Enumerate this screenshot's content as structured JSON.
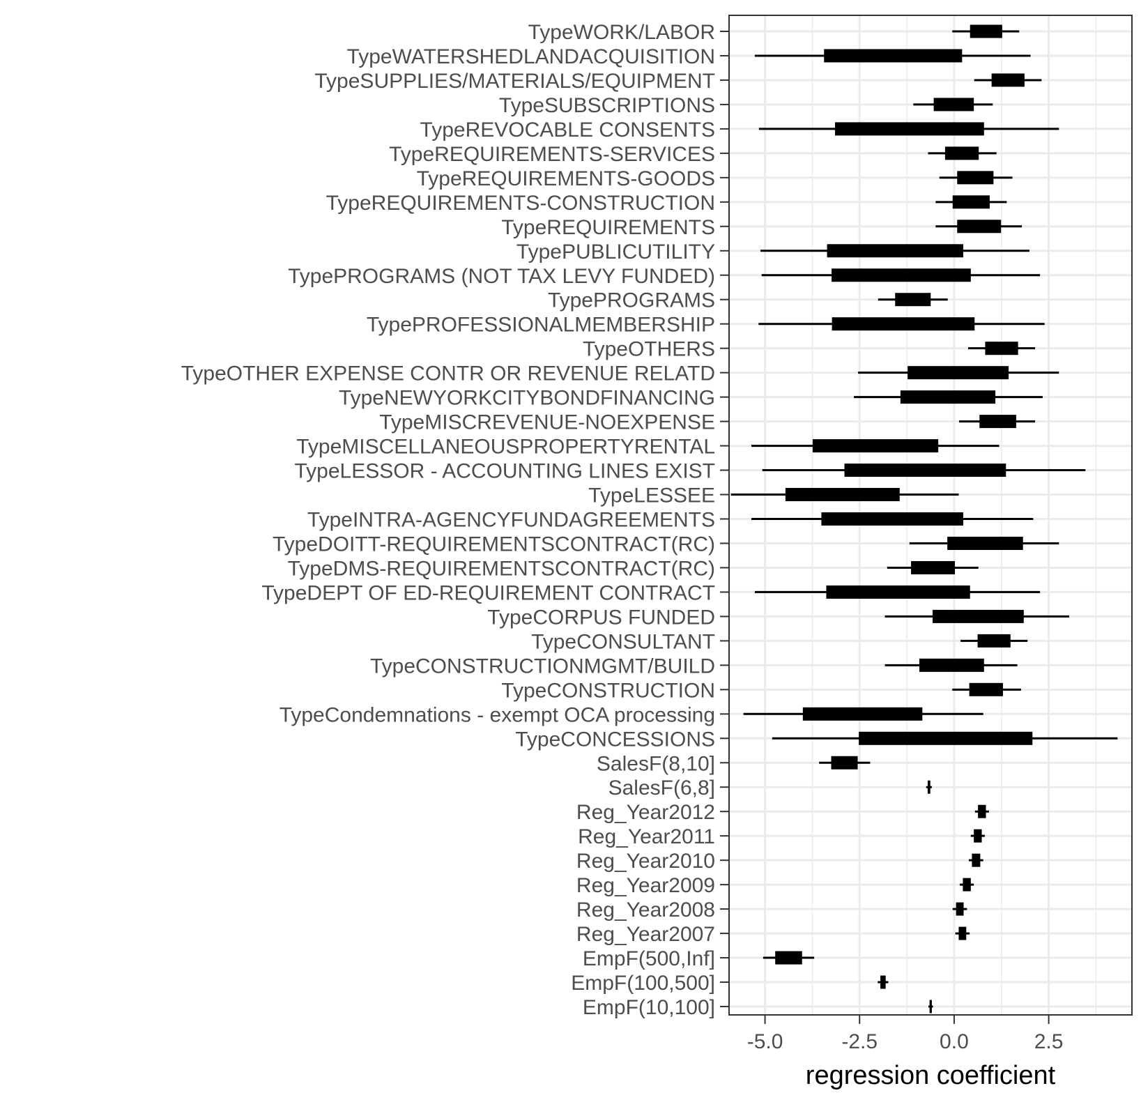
{
  "chart_data": {
    "type": "interval",
    "xlabel": "regression coefficient",
    "ylabel": "",
    "xlim": [
      -5.95,
      4.7
    ],
    "x_ticks": [
      -5.0,
      -2.5,
      0.0,
      2.5
    ],
    "x_tick_labels": [
      "-5.0",
      "-2.5",
      "0.0",
      "2.5"
    ],
    "x_minor_ticks": [
      -6.25,
      -3.75,
      -1.25,
      1.25,
      3.75
    ],
    "grid": true,
    "legend": "none",
    "colors": {
      "mark": "#000000",
      "grid": "#ebebeb",
      "panel_border": "#333333",
      "tick_label": "#4d4d4d"
    },
    "terms": [
      {
        "label": "TypeWORK/LABOR",
        "outer": [
          -0.05,
          1.72
        ],
        "inner": [
          0.42,
          1.27
        ]
      },
      {
        "label": "TypeWATERSHEDLANDACQUISITION",
        "outer": [
          -5.27,
          2.02
        ],
        "inner": [
          -3.44,
          0.21
        ]
      },
      {
        "label": "TypeSUPPLIES/MATERIALS/EQUIPMENT",
        "outer": [
          0.53,
          2.31
        ],
        "inner": [
          0.99,
          1.86
        ]
      },
      {
        "label": "TypeSUBSCRIPTIONS",
        "outer": [
          -1.08,
          1.02
        ],
        "inner": [
          -0.54,
          0.52
        ]
      },
      {
        "label": "TypeREVOCABLE CONSENTS",
        "outer": [
          -5.16,
          2.77
        ],
        "inner": [
          -3.15,
          0.79
        ]
      },
      {
        "label": "TypeREQUIREMENTS-SERVICES",
        "outer": [
          -0.69,
          1.12
        ],
        "inner": [
          -0.24,
          0.65
        ]
      },
      {
        "label": "TypeREQUIREMENTS-GOODS",
        "outer": [
          -0.39,
          1.54
        ],
        "inner": [
          0.08,
          1.04
        ]
      },
      {
        "label": "TypeREQUIREMENTS-CONSTRUCTION",
        "outer": [
          -0.49,
          1.39
        ],
        "inner": [
          -0.04,
          0.94
        ]
      },
      {
        "label": "TypeREQUIREMENTS",
        "outer": [
          -0.49,
          1.79
        ],
        "inner": [
          0.08,
          1.24
        ]
      },
      {
        "label": "TypePUBLICUTILITY",
        "outer": [
          -5.12,
          1.99
        ],
        "inner": [
          -3.36,
          0.24
        ]
      },
      {
        "label": "TypePROGRAMS (NOT TAX LEVY FUNDED)",
        "outer": [
          -5.09,
          2.27
        ],
        "inner": [
          -3.24,
          0.44
        ]
      },
      {
        "label": "TypePROGRAMS",
        "outer": [
          -2.01,
          -0.17
        ],
        "inner": [
          -1.56,
          -0.62
        ]
      },
      {
        "label": "TypePROFESSIONALMEMBERSHIP",
        "outer": [
          -5.17,
          2.39
        ],
        "inner": [
          -3.23,
          0.54
        ]
      },
      {
        "label": "TypeOTHERS",
        "outer": [
          0.37,
          2.14
        ],
        "inner": [
          0.82,
          1.69
        ]
      },
      {
        "label": "TypeOTHER EXPENSE CONTR OR REVENUE RELATD",
        "outer": [
          -2.54,
          2.77
        ],
        "inner": [
          -1.23,
          1.44
        ]
      },
      {
        "label": "TypeNEWYORKCITYBONDFINANCING",
        "outer": [
          -2.65,
          2.34
        ],
        "inner": [
          -1.42,
          1.09
        ]
      },
      {
        "label": "TypeMISCREVENUE-NOEXPENSE",
        "outer": [
          0.13,
          2.14
        ],
        "inner": [
          0.67,
          1.64
        ]
      },
      {
        "label": "TypeMISCELLANEOUSPROPERTYRENTAL",
        "outer": [
          -5.36,
          1.19
        ],
        "inner": [
          -3.74,
          -0.42
        ]
      },
      {
        "label": "TypeLESSOR - ACCOUNTING LINES EXIST",
        "outer": [
          -5.07,
          3.47
        ],
        "inner": [
          -2.9,
          1.37
        ]
      },
      {
        "label": "TypeLESSEE",
        "outer": [
          -5.9,
          0.12
        ],
        "inner": [
          -4.46,
          -1.44
        ]
      },
      {
        "label": "TypeINTRA-AGENCYFUNDAGREEMENTS",
        "outer": [
          -5.36,
          2.09
        ],
        "inner": [
          -3.51,
          0.24
        ]
      },
      {
        "label": "TypeDOITT-REQUIREMENTSCONTRACT(RC)",
        "outer": [
          -1.18,
          2.77
        ],
        "inner": [
          -0.18,
          1.82
        ]
      },
      {
        "label": "TypeDMS-REQUIREMENTSCONTRACT(RC)",
        "outer": [
          -1.77,
          0.64
        ],
        "inner": [
          -1.14,
          0.02
        ]
      },
      {
        "label": "TypeDEPT OF ED-REQUIREMENT CONTRACT",
        "outer": [
          -5.27,
          2.27
        ],
        "inner": [
          -3.38,
          0.42
        ]
      },
      {
        "label": "TypeCORPUS FUNDED",
        "outer": [
          -1.83,
          3.04
        ],
        "inner": [
          -0.57,
          1.84
        ]
      },
      {
        "label": "TypeCONSULTANT",
        "outer": [
          0.17,
          1.94
        ],
        "inner": [
          0.62,
          1.49
        ]
      },
      {
        "label": "TypeCONSTRUCTIONMGMT/BUILD",
        "outer": [
          -1.83,
          1.67
        ],
        "inner": [
          -0.92,
          0.79
        ]
      },
      {
        "label": "TypeCONSTRUCTION",
        "outer": [
          -0.05,
          1.77
        ],
        "inner": [
          0.4,
          1.29
        ]
      },
      {
        "label": "TypeCondemnations - exempt OCA processing",
        "outer": [
          -5.57,
          0.77
        ],
        "inner": [
          -4.0,
          -0.84
        ]
      },
      {
        "label": "TypeCONCESSIONS",
        "outer": [
          -4.81,
          4.32
        ],
        "inner": [
          -2.52,
          2.07
        ]
      },
      {
        "label": "SalesF(8,10]",
        "outer": [
          -3.57,
          -2.22
        ],
        "inner": [
          -3.25,
          -2.55
        ]
      },
      {
        "label": "SalesF(6,8]",
        "outer": [
          -0.74,
          -0.59
        ],
        "inner": [
          -0.7,
          -0.63
        ]
      },
      {
        "label": "Reg_Year2012",
        "outer": [
          0.55,
          0.92
        ],
        "inner": [
          0.63,
          0.84
        ]
      },
      {
        "label": "Reg_Year2011",
        "outer": [
          0.44,
          0.81
        ],
        "inner": [
          0.52,
          0.73
        ]
      },
      {
        "label": "Reg_Year2010",
        "outer": [
          0.39,
          0.77
        ],
        "inner": [
          0.47,
          0.69
        ]
      },
      {
        "label": "Reg_Year2009",
        "outer": [
          0.15,
          0.52
        ],
        "inner": [
          0.23,
          0.44
        ]
      },
      {
        "label": "Reg_Year2008",
        "outer": [
          -0.04,
          0.34
        ],
        "inner": [
          0.05,
          0.25
        ]
      },
      {
        "label": "Reg_Year2007",
        "outer": [
          0.03,
          0.41
        ],
        "inner": [
          0.12,
          0.32
        ]
      },
      {
        "label": "EmpF(500,Inf]",
        "outer": [
          -5.05,
          -3.7
        ],
        "inner": [
          -4.73,
          -4.02
        ]
      },
      {
        "label": "EmpF(100,500]",
        "outer": [
          -2.02,
          -1.74
        ],
        "inner": [
          -1.95,
          -1.81
        ]
      },
      {
        "label": "EmpF(10,100]",
        "outer": [
          -0.68,
          -0.56
        ],
        "inner": [
          -0.65,
          -0.59
        ]
      }
    ]
  }
}
